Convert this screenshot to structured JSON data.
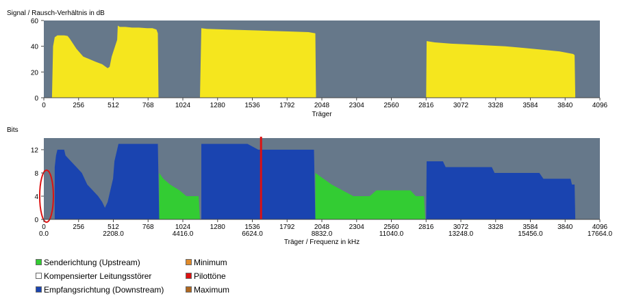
{
  "chart_data": [
    {
      "type": "area",
      "title": "Signal / Rausch-Verhältnis in dB",
      "xlabel": "Träger",
      "ylabel": "",
      "xlim": [
        0,
        4096
      ],
      "ylim": [
        0,
        60
      ],
      "yticks": [
        0,
        20,
        40,
        60
      ],
      "xticks": [
        0,
        256,
        512,
        768,
        1024,
        1280,
        1536,
        1792,
        2048,
        2304,
        2560,
        2816,
        3072,
        3328,
        3584,
        3840,
        4096
      ],
      "grid": false,
      "series": [
        {
          "color": "#f5e61e",
          "points": [
            [
              60,
              0
            ],
            [
              68,
              40
            ],
            [
              80,
              47
            ],
            [
              100,
              48.5
            ],
            [
              150,
              48.5
            ],
            [
              175,
              48
            ],
            [
              190,
              46
            ],
            [
              240,
              38
            ],
            [
              290,
              32
            ],
            [
              380,
              28
            ],
            [
              430,
              26
            ],
            [
              470,
              23
            ],
            [
              485,
              24
            ],
            [
              500,
              32
            ],
            [
              540,
              45
            ],
            [
              545,
              56
            ],
            [
              560,
              55
            ],
            [
              600,
              55
            ],
            [
              650,
              54.5
            ],
            [
              700,
              54.5
            ],
            [
              760,
              54
            ],
            [
              800,
              54
            ],
            [
              830,
              53
            ],
            [
              840,
              50
            ],
            [
              845,
              0
            ],
            [
              1150,
              0
            ],
            [
              1160,
              54
            ],
            [
              1200,
              53.5
            ],
            [
              1350,
              53
            ],
            [
              1500,
              52.5
            ],
            [
              1650,
              52
            ],
            [
              1800,
              51.5
            ],
            [
              1950,
              51
            ],
            [
              2000,
              50
            ],
            [
              2005,
              0
            ],
            [
              2816,
              0
            ],
            [
              2820,
              44
            ],
            [
              2880,
              43
            ],
            [
              3000,
              42
            ],
            [
              3100,
              41.5
            ],
            [
              3200,
              41
            ],
            [
              3300,
              40.5
            ],
            [
              3400,
              40
            ],
            [
              3500,
              39
            ],
            [
              3600,
              38
            ],
            [
              3700,
              37
            ],
            [
              3800,
              36
            ],
            [
              3850,
              35
            ],
            [
              3900,
              34
            ],
            [
              3910,
              33
            ],
            [
              3915,
              0
            ]
          ]
        }
      ]
    },
    {
      "type": "area",
      "title": "Bits",
      "xlabel": "Träger / Frequenz in kHz",
      "ylabel": "",
      "xlim": [
        0,
        4096
      ],
      "ylim": [
        0,
        14
      ],
      "yticks": [
        0,
        4,
        8,
        12
      ],
      "xticks": [
        0,
        256,
        512,
        768,
        1024,
        1280,
        1536,
        1792,
        2048,
        2304,
        2560,
        2816,
        3072,
        3328,
        3584,
        3840,
        4096
      ],
      "frequency_ticks": [
        "0.0",
        "2208.0",
        "4416.0",
        "6624.0",
        "8832.0",
        "11040.0",
        "13248.0",
        "15456.0",
        "17664.0"
      ],
      "grid": false,
      "series": [
        {
          "name": "Empfangsrichtung (Downstream)",
          "color": "#1a44b0",
          "points": [
            [
              80,
              0
            ],
            [
              80,
              9
            ],
            [
              90,
              11
            ],
            [
              100,
              12
            ],
            [
              150,
              12
            ],
            [
              160,
              11
            ],
            [
              200,
              10
            ],
            [
              240,
              9
            ],
            [
              280,
              8
            ],
            [
              320,
              6
            ],
            [
              360,
              5
            ],
            [
              400,
              4
            ],
            [
              430,
              3
            ],
            [
              450,
              2
            ],
            [
              470,
              3
            ],
            [
              500,
              6
            ],
            [
              510,
              7
            ],
            [
              520,
              10
            ],
            [
              550,
              13
            ],
            [
              700,
              13
            ],
            [
              840,
              13
            ],
            [
              850,
              0
            ]
          ]
        },
        {
          "name": "Empfangsrichtung (Downstream)",
          "color": "#1a44b0",
          "points": [
            [
              1160,
              0
            ],
            [
              1160,
              13
            ],
            [
              1500,
              13
            ],
            [
              1580,
              12
            ],
            [
              1950,
              12
            ],
            [
              1990,
              12
            ],
            [
              2000,
              0
            ]
          ]
        },
        {
          "name": "Empfangsrichtung (Downstream)",
          "color": "#1a44b0",
          "points": [
            [
              2816,
              0
            ],
            [
              2820,
              10
            ],
            [
              2940,
              10
            ],
            [
              2960,
              9
            ],
            [
              3300,
              9
            ],
            [
              3320,
              8
            ],
            [
              3650,
              8
            ],
            [
              3680,
              7
            ],
            [
              3880,
              7
            ],
            [
              3890,
              6
            ],
            [
              3910,
              6
            ],
            [
              3915,
              0
            ]
          ]
        },
        {
          "name": "Senderichtung (Upstream)",
          "color": "#33cc33",
          "points": [
            [
              850,
              0
            ],
            [
              850,
              8
            ],
            [
              880,
              7
            ],
            [
              930,
              6
            ],
            [
              1000,
              5
            ],
            [
              1050,
              4
            ],
            [
              1140,
              4
            ],
            [
              1150,
              0
            ]
          ]
        },
        {
          "name": "Senderichtung (Upstream)",
          "color": "#33cc33",
          "points": [
            [
              2000,
              0
            ],
            [
              2000,
              8
            ],
            [
              2060,
              7
            ],
            [
              2120,
              6
            ],
            [
              2200,
              5
            ],
            [
              2280,
              4
            ],
            [
              2400,
              4
            ],
            [
              2450,
              5
            ],
            [
              2700,
              5
            ],
            [
              2740,
              4
            ],
            [
              2800,
              4
            ],
            [
              2810,
              0
            ]
          ]
        }
      ],
      "marker_lines": [
        {
          "name": "Pilottöne",
          "x": 1600,
          "color": "#dd1111"
        }
      ],
      "annotations": [
        {
          "shape": "ellipse",
          "x": 20,
          "y": 4,
          "color": "#dd1111"
        }
      ]
    }
  ],
  "legend": [
    {
      "label": "Senderichtung (Upstream)",
      "color": "#33cc33"
    },
    {
      "label": "Kompensierter Leitungsstörer",
      "color": "#ffffff"
    },
    {
      "label": "Empfangsrichtung (Downstream)",
      "color": "#1a44b0"
    },
    {
      "label": "Minimum",
      "color": "#e08a2a"
    },
    {
      "label": "Pilottöne",
      "color": "#dd1111"
    },
    {
      "label": "Maximum",
      "color": "#b06820"
    }
  ]
}
